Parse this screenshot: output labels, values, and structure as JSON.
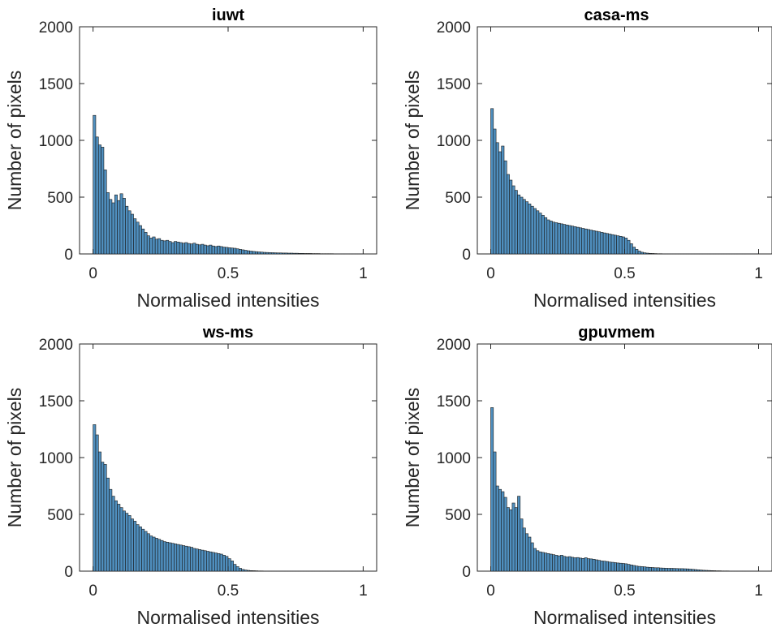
{
  "chart_data": [
    {
      "type": "bar",
      "title": "iuwt",
      "xlabel": "Normalised intensities",
      "ylabel": "Number of pixels",
      "xlim": [
        -0.05,
        1.05
      ],
      "ylim": [
        0,
        2000
      ],
      "xticks": [
        "0",
        "0.5",
        "1"
      ],
      "yticks": [
        "0",
        "500",
        "1000",
        "1500",
        "2000"
      ],
      "grid": false,
      "bin_width": 0.01,
      "bin_start": 0.0,
      "values": [
        1220,
        1030,
        960,
        940,
        740,
        540,
        480,
        450,
        520,
        470,
        530,
        490,
        420,
        380,
        350,
        310,
        280,
        250,
        220,
        190,
        160,
        140,
        150,
        130,
        135,
        120,
        115,
        120,
        110,
        100,
        110,
        105,
        100,
        95,
        100,
        92,
        88,
        95,
        85,
        80,
        85,
        78,
        72,
        78,
        70,
        65,
        70,
        65,
        60,
        58,
        55,
        52,
        50,
        45,
        40,
        36,
        32,
        28,
        25,
        22,
        20,
        18,
        16,
        14,
        13,
        12,
        11,
        10,
        9,
        9,
        8,
        8,
        7,
        7,
        6,
        6,
        5,
        5,
        4,
        4,
        4,
        3,
        3,
        3,
        2,
        2,
        2,
        2,
        2,
        1,
        1,
        1,
        1,
        1,
        1,
        1,
        1,
        1,
        1,
        1
      ]
    },
    {
      "type": "bar",
      "title": "casa-ms",
      "xlabel": "Normalised intensities",
      "ylabel": "Number of pixels",
      "xlim": [
        -0.05,
        1.05
      ],
      "ylim": [
        0,
        2000
      ],
      "xticks": [
        "0",
        "0.5",
        "1"
      ],
      "yticks": [
        "0",
        "500",
        "1000",
        "1500",
        "2000"
      ],
      "grid": false,
      "bin_width": 0.01,
      "bin_start": 0.0,
      "values": [
        1280,
        1100,
        980,
        900,
        950,
        820,
        700,
        650,
        600,
        560,
        520,
        500,
        480,
        460,
        440,
        420,
        400,
        380,
        360,
        340,
        320,
        300,
        290,
        280,
        275,
        270,
        265,
        260,
        255,
        250,
        245,
        240,
        235,
        230,
        225,
        220,
        215,
        210,
        205,
        200,
        195,
        190,
        185,
        180,
        175,
        170,
        165,
        160,
        155,
        150,
        140,
        120,
        90,
        60,
        40,
        25,
        15,
        10,
        7,
        5,
        4,
        3,
        2,
        2,
        1,
        1,
        1,
        1,
        1,
        1,
        1,
        1,
        1,
        1,
        1,
        1,
        1,
        1,
        1,
        1,
        1,
        1,
        1,
        1,
        1,
        1,
        1,
        1,
        1,
        1,
        1,
        1,
        1,
        1,
        1,
        1,
        1,
        1,
        1,
        1
      ]
    },
    {
      "type": "bar",
      "title": "ws-ms",
      "xlabel": "Normalised intensities",
      "ylabel": "Number of pixels",
      "xlim": [
        -0.05,
        1.05
      ],
      "ylim": [
        0,
        2000
      ],
      "xticks": [
        "0",
        "0.5",
        "1"
      ],
      "yticks": [
        "0",
        "500",
        "1000",
        "1500",
        "2000"
      ],
      "grid": false,
      "bin_width": 0.01,
      "bin_start": 0.0,
      "values": [
        1290,
        1200,
        1050,
        960,
        940,
        820,
        720,
        660,
        620,
        590,
        560,
        530,
        510,
        490,
        460,
        440,
        410,
        390,
        370,
        350,
        330,
        310,
        300,
        290,
        280,
        270,
        260,
        255,
        250,
        245,
        240,
        235,
        230,
        225,
        220,
        215,
        210,
        200,
        195,
        190,
        185,
        180,
        175,
        170,
        165,
        160,
        155,
        150,
        140,
        130,
        110,
        90,
        60,
        40,
        25,
        15,
        10,
        7,
        5,
        4,
        3,
        2,
        2,
        1,
        1,
        1,
        1,
        1,
        1,
        1,
        1,
        1,
        1,
        1,
        1,
        1,
        1,
        1,
        1,
        1,
        1,
        1,
        1,
        1,
        1,
        1,
        1,
        1,
        1,
        1,
        1,
        1,
        1,
        1,
        1,
        1,
        1,
        1,
        1,
        1
      ]
    },
    {
      "type": "bar",
      "title": "gpuvmem",
      "xlabel": "Normalised intensities",
      "ylabel": "Number of pixels",
      "xlim": [
        -0.05,
        1.05
      ],
      "ylim": [
        0,
        2000
      ],
      "xticks": [
        "0",
        "0.5",
        "1"
      ],
      "yticks": [
        "0",
        "500",
        "1000",
        "1500",
        "2000"
      ],
      "grid": false,
      "bin_width": 0.01,
      "bin_start": 0.0,
      "values": [
        1440,
        1050,
        750,
        720,
        700,
        650,
        560,
        540,
        600,
        560,
        660,
        460,
        380,
        330,
        300,
        250,
        200,
        180,
        170,
        165,
        160,
        155,
        150,
        145,
        140,
        135,
        140,
        130,
        125,
        128,
        122,
        118,
        120,
        115,
        112,
        118,
        110,
        108,
        105,
        100,
        95,
        90,
        88,
        85,
        80,
        78,
        75,
        72,
        70,
        68,
        65,
        60,
        55,
        50,
        45,
        42,
        40,
        38,
        35,
        33,
        32,
        30,
        30,
        28,
        27,
        26,
        25,
        25,
        24,
        23,
        22,
        22,
        21,
        20,
        18,
        16,
        14,
        12,
        10,
        8,
        7,
        6,
        5,
        4,
        3,
        3,
        2,
        2,
        2,
        1,
        1,
        1,
        1,
        1,
        1,
        1,
        1,
        1,
        1,
        1
      ]
    }
  ]
}
